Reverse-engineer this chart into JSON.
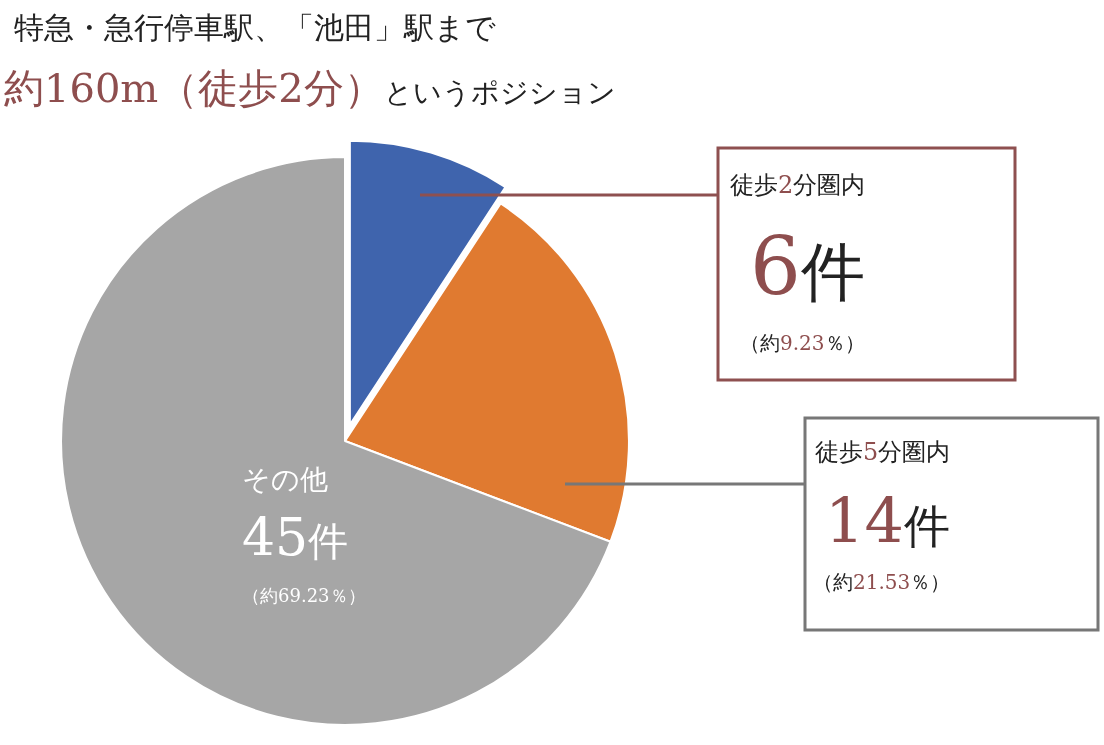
{
  "chart_data": {
    "type": "pie",
    "title": "特急・急行停車駅、「池田」駅まで",
    "subtitle": "約160m（徒歩2分）というポジション",
    "categories": [
      "徒歩2分圏内",
      "徒歩5分圏内",
      "その他"
    ],
    "values": [
      6,
      14,
      45
    ],
    "colors": [
      "#3f64ad",
      "#e07a30",
      "#a6a6a6"
    ],
    "value_labels": [
      "6件",
      "14件",
      "45件"
    ],
    "annotations": [
      "（約9.23％）",
      "（約21.53％）",
      "（約69.23％）"
    ],
    "legend": false
  }
}
